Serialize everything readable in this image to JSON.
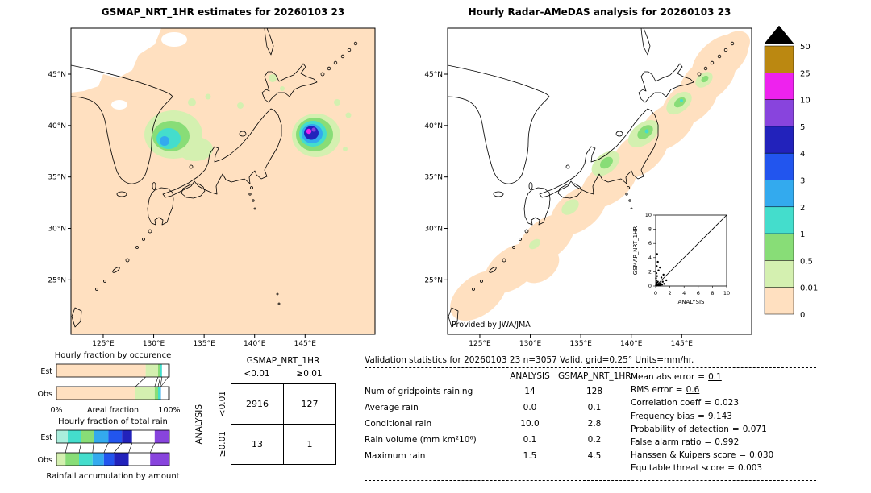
{
  "left_map": {
    "title": "GSMAP_NRT_1HR estimates for 20260103 23",
    "x_ticks": [
      "125°E",
      "130°E",
      "135°E",
      "140°E",
      "145°E"
    ],
    "y_ticks": [
      "45°N",
      "40°N",
      "35°N",
      "30°N",
      "25°N"
    ]
  },
  "right_map": {
    "title": "Hourly Radar-AMeDAS analysis for 20260103 23",
    "x_ticks": [
      "125°E",
      "130°E",
      "135°E",
      "140°E",
      "145°E"
    ],
    "y_ticks": [
      "45°N",
      "40°N",
      "35°N",
      "30°N",
      "25°N"
    ],
    "credit": "Provided by JWA/JMA",
    "inset": {
      "xlabel": "ANALYSIS",
      "ylabel": "GSMAP_NRT_1HR",
      "ticks": [
        "0",
        "2",
        "4",
        "6",
        "8",
        "10"
      ]
    }
  },
  "colorbar": {
    "labels": [
      "50",
      "25",
      "10",
      "5",
      "4",
      "3",
      "2",
      "1",
      "0.5",
      "0.01",
      "0"
    ],
    "colors": [
      "#bb8811",
      "#ee22ee",
      "#8844dd",
      "#2222bb",
      "#2255ee",
      "#33aaee",
      "#44ddcc",
      "#88dd77",
      "#d4f0b0",
      "#ffe0c0"
    ],
    "overflow_color": "#000000",
    "units": "mm/hr"
  },
  "occurrence_chart": {
    "title": "Hourly fraction by occurence",
    "axis_left": "0%",
    "axis_center": "Areal fraction",
    "axis_right": "100%",
    "rows": [
      {
        "label": "Est",
        "segments": [
          {
            "color": "#ffe0c0",
            "pct": 79
          },
          {
            "color": "#d4f0b0",
            "pct": 11
          },
          {
            "color": "#88dd77",
            "pct": 2
          },
          {
            "color": "#44ddcc",
            "pct": 1.5
          },
          {
            "color": "#ffffff",
            "pct": 5.5
          },
          {
            "color": "#000000",
            "pct": 1
          }
        ]
      },
      {
        "label": "Obs",
        "segments": [
          {
            "color": "#ffe0c0",
            "pct": 70
          },
          {
            "color": "#d4f0b0",
            "pct": 17
          },
          {
            "color": "#88dd77",
            "pct": 3
          },
          {
            "color": "#44ddcc",
            "pct": 2
          },
          {
            "color": "#33aaee",
            "pct": 0.5
          },
          {
            "color": "#ffffff",
            "pct": 6.5
          },
          {
            "color": "#000000",
            "pct": 1
          }
        ]
      }
    ]
  },
  "totalrain_chart": {
    "title": "Hourly fraction of total rain",
    "footer": "Rainfall accumulation by amount",
    "rows": [
      {
        "label": "Est",
        "segments": [
          {
            "color": "#aaeedd",
            "pct": 10
          },
          {
            "color": "#44ddcc",
            "pct": 12
          },
          {
            "color": "#88dd77",
            "pct": 11
          },
          {
            "color": "#33aaee",
            "pct": 13
          },
          {
            "color": "#2255ee",
            "pct": 12
          },
          {
            "color": "#2222bb",
            "pct": 9
          },
          {
            "color": "#ffffff",
            "pct": 20
          },
          {
            "color": "#8844dd",
            "pct": 13
          }
        ]
      },
      {
        "label": "Obs",
        "segments": [
          {
            "color": "#d4f0b0",
            "pct": 8
          },
          {
            "color": "#88dd77",
            "pct": 12
          },
          {
            "color": "#44ddcc",
            "pct": 12
          },
          {
            "color": "#33aaee",
            "pct": 10
          },
          {
            "color": "#2255ee",
            "pct": 9
          },
          {
            "color": "#2222bb",
            "pct": 13
          },
          {
            "color": "#ffffff",
            "pct": 19
          },
          {
            "color": "#8844dd",
            "pct": 17
          }
        ]
      }
    ]
  },
  "contingency": {
    "header": "GSMAP_NRT_1HR",
    "col_labels": [
      "<0.01",
      "≥0.01"
    ],
    "row_axis": "ANALYSIS",
    "row_labels": [
      "<0.01",
      "≥0.01"
    ],
    "values": [
      [
        "2916",
        "127"
      ],
      [
        "13",
        "1"
      ]
    ]
  },
  "stats": {
    "title": "Validation statistics for 20260103 23  n=3057 Valid. grid=0.25° Units=mm/hr.",
    "table": {
      "col_headers": [
        "ANALYSIS",
        "GSMAP_NRT_1HR"
      ],
      "rows": [
        {
          "label": "Num of gridpoints raining",
          "analysis": "14",
          "gsmap": "128"
        },
        {
          "label": "Average rain",
          "analysis": "0.0",
          "gsmap": "0.1"
        },
        {
          "label": "Conditional rain",
          "analysis": "10.0",
          "gsmap": "2.8"
        },
        {
          "label": "Rain volume (mm km²10⁶)",
          "analysis": "0.1",
          "gsmap": "0.2"
        },
        {
          "label": "Maximum rain",
          "analysis": "1.5",
          "gsmap": "4.5"
        }
      ]
    },
    "metrics": [
      {
        "label": "Mean abs error",
        "value": "0.1"
      },
      {
        "label": "RMS error",
        "value": "0.6"
      },
      {
        "label": "Correlation coeff",
        "value": "0.023"
      },
      {
        "label": "Frequency bias",
        "value": "9.143"
      },
      {
        "label": "Probability of detection",
        "value": "0.071"
      },
      {
        "label": "False alarm ratio",
        "value": "0.992"
      },
      {
        "label": "Hanssen & Kuipers score",
        "value": "0.030"
      },
      {
        "label": "Equitable threat score",
        "value": "0.003"
      }
    ]
  },
  "chart_data": [
    {
      "type": "heatmap",
      "title": "GSMAP_NRT_1HR estimates for 20260103 23",
      "x_ticks": [
        "125°E",
        "130°E",
        "135°E",
        "140°E",
        "145°E"
      ],
      "y_ticks": [
        "45°N",
        "40°N",
        "35°N",
        "30°N",
        "25°N"
      ],
      "units": "mm/hr",
      "levels": [
        0,
        0.01,
        0.5,
        1,
        2,
        3,
        4,
        5,
        10,
        25,
        50
      ],
      "description": "Satellite rain map over Japan: near-zero (0-0.01, peach) almost everywhere; 0.5-3 mm/hr cell over the Sea of Japan near 137°E,37.5°N; intense cell reaching 4-25 mm/hr east of Tohoku near 145.5°E,38.5°N"
    },
    {
      "type": "heatmap",
      "title": "Hourly Radar-AMeDAS analysis for 20260103 23",
      "x_ticks": [
        "125°E",
        "130°E",
        "135°E",
        "140°E",
        "145°E"
      ],
      "y_ticks": [
        "45°N",
        "40°N",
        "35°N",
        "30°N",
        "25°N"
      ],
      "units": "mm/hr",
      "levels": [
        0,
        0.01,
        0.5,
        1,
        2,
        3,
        4,
        5,
        10,
        25,
        50
      ],
      "description": "Radar-AMeDAS analysis: a 0-0.01 mm/hr band along the entire archipelago from Okinawa to Hokkaido with embedded 0.01-2 mm/hr cells over central/northern Honshu"
    },
    {
      "type": "scatter",
      "title": "GSMAP_NRT_1HR vs ANALYSIS (inset)",
      "xlabel": "ANALYSIS",
      "ylabel": "GSMAP_NRT_1HR",
      "xlim": [
        0,
        10
      ],
      "ylim": [
        0,
        10
      ],
      "diagonal_line": true,
      "points": [
        [
          0.05,
          0.1
        ],
        [
          0.1,
          0.05
        ],
        [
          0.1,
          0.3
        ],
        [
          0.2,
          0.1
        ],
        [
          0.2,
          0.5
        ],
        [
          0.3,
          0.2
        ],
        [
          0.1,
          0.8
        ],
        [
          0.4,
          0.1
        ],
        [
          0.3,
          0.6
        ],
        [
          0.5,
          0.3
        ],
        [
          0.05,
          1.1
        ],
        [
          0.6,
          0.1
        ],
        [
          0.2,
          1.4
        ],
        [
          0.7,
          0.4
        ],
        [
          0.9,
          0.2
        ],
        [
          0.1,
          1.8
        ],
        [
          1.0,
          0.6
        ],
        [
          0.4,
          2.2
        ],
        [
          1.2,
          0.3
        ],
        [
          0.15,
          2.8
        ],
        [
          1.5,
          0.8
        ],
        [
          0.3,
          3.4
        ],
        [
          0.8,
          1.2
        ],
        [
          0.2,
          4.5
        ],
        [
          1.1,
          1.6
        ],
        [
          0.6,
          2.6
        ]
      ]
    },
    {
      "type": "table",
      "title": "Contingency table",
      "col_group": "GSMAP_NRT_1HR",
      "row_group": "ANALYSIS",
      "columns": [
        "<0.01",
        "≥0.01"
      ],
      "rows": [
        "<0.01",
        "≥0.01"
      ],
      "values": [
        [
          2916,
          127
        ],
        [
          13,
          1
        ]
      ]
    },
    {
      "type": "bar",
      "title": "Hourly fraction by occurence",
      "orientation": "horizontal",
      "stacked": true,
      "categories": [
        "Est",
        "Obs"
      ],
      "segments_pct": [
        [
          79,
          11,
          2,
          1.5,
          5.5,
          1
        ],
        [
          70,
          17,
          3,
          2,
          0.5,
          6.5,
          1
        ]
      ],
      "xlabel": "Areal fraction",
      "xlim_labels": [
        "0%",
        "100%"
      ]
    },
    {
      "type": "bar",
      "title": "Hourly fraction of total rain",
      "orientation": "horizontal",
      "stacked": true,
      "categories": [
        "Est",
        "Obs"
      ],
      "segments_pct": [
        [
          10,
          12,
          11,
          13,
          12,
          9,
          20,
          13
        ],
        [
          8,
          12,
          12,
          10,
          9,
          13,
          19,
          17
        ]
      ],
      "xlabel": "Rainfall accumulation by amount"
    }
  ]
}
